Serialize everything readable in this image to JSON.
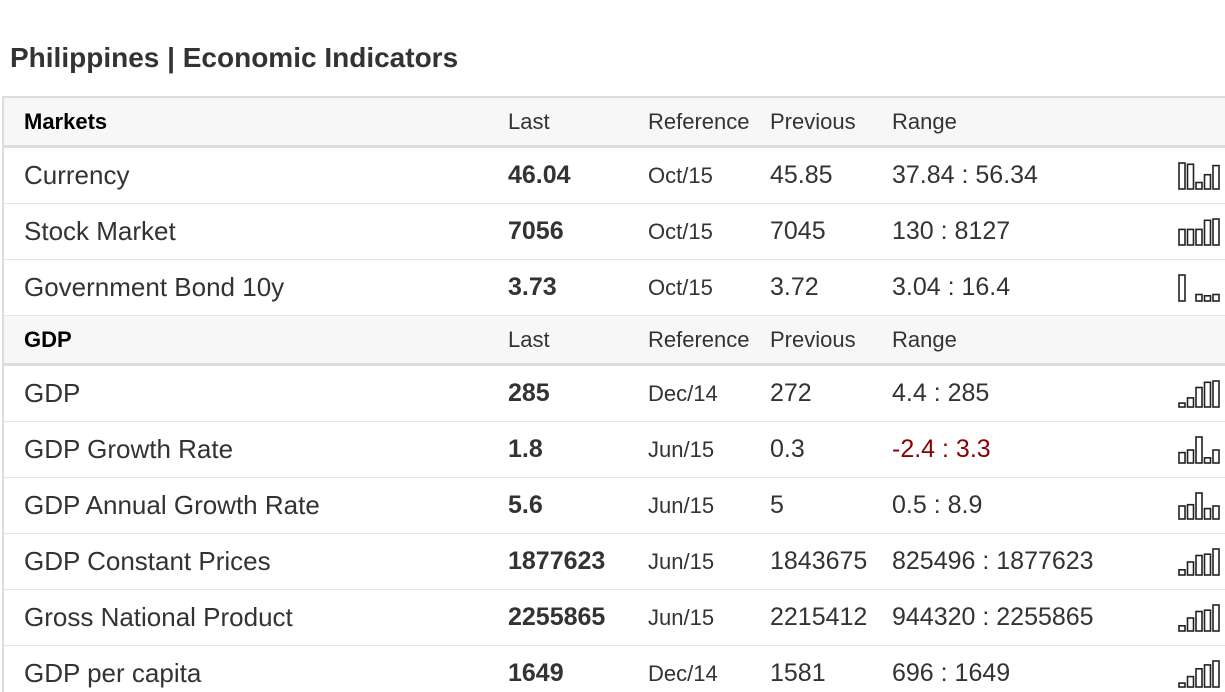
{
  "page_title": "Philippines | Economic Indicators",
  "sections": [
    {
      "header": {
        "name": "Markets",
        "last": "Last",
        "reference": "Reference",
        "previous": "Previous",
        "range": "Range"
      },
      "rows": [
        {
          "name": "Currency",
          "last": "46.04",
          "reference": "Oct/15",
          "previous": "45.85",
          "range": "37.84 : 56.34",
          "negative": false,
          "spark": [
            1.0,
            0.95,
            0.25,
            0.55,
            0.9
          ]
        },
        {
          "name": "Stock Market",
          "last": "7056",
          "reference": "Oct/15",
          "previous": "7045",
          "range": "130 : 8127",
          "negative": false,
          "spark": [
            0.6,
            0.6,
            0.6,
            0.95,
            1.0
          ]
        },
        {
          "name": "Government Bond 10y",
          "last": "3.73",
          "reference": "Oct/15",
          "previous": "3.72",
          "range": "3.04 : 16.4",
          "negative": false,
          "spark": [
            1.0,
            0.0,
            0.25,
            0.2,
            0.25
          ]
        }
      ]
    },
    {
      "header": {
        "name": "GDP",
        "last": "Last",
        "reference": "Reference",
        "previous": "Previous",
        "range": "Range"
      },
      "rows": [
        {
          "name": "GDP",
          "last": "285",
          "reference": "Dec/14",
          "previous": "272",
          "range": "4.4 : 285",
          "negative": false,
          "spark": [
            0.15,
            0.35,
            0.75,
            0.95,
            1.0
          ]
        },
        {
          "name": "GDP Growth Rate",
          "last": "1.8",
          "reference": "Jun/15",
          "previous": "0.3",
          "range": "-2.4 : 3.3",
          "negative": true,
          "spark": [
            0.4,
            0.5,
            1.0,
            0.2,
            0.5
          ]
        },
        {
          "name": "GDP Annual Growth Rate",
          "last": "5.6",
          "reference": "Jun/15",
          "previous": "5",
          "range": "0.5 : 8.9",
          "negative": false,
          "spark": [
            0.5,
            0.55,
            1.0,
            0.4,
            0.5
          ]
        },
        {
          "name": "GDP Constant Prices",
          "last": "1877623",
          "reference": "Jun/15",
          "previous": "1843675",
          "range": "825496 : 1877623",
          "negative": false,
          "spark": [
            0.2,
            0.5,
            0.75,
            0.8,
            1.0
          ]
        },
        {
          "name": "Gross National Product",
          "last": "2255865",
          "reference": "Jun/15",
          "previous": "2215412",
          "range": "944320 : 2255865",
          "negative": false,
          "spark": [
            0.2,
            0.5,
            0.75,
            0.8,
            1.0
          ]
        },
        {
          "name": "GDP per capita",
          "last": "1649",
          "reference": "Dec/14",
          "previous": "1581",
          "range": "696 : 1649",
          "negative": false,
          "spark": [
            0.15,
            0.4,
            0.7,
            0.85,
            1.0
          ]
        }
      ]
    }
  ]
}
